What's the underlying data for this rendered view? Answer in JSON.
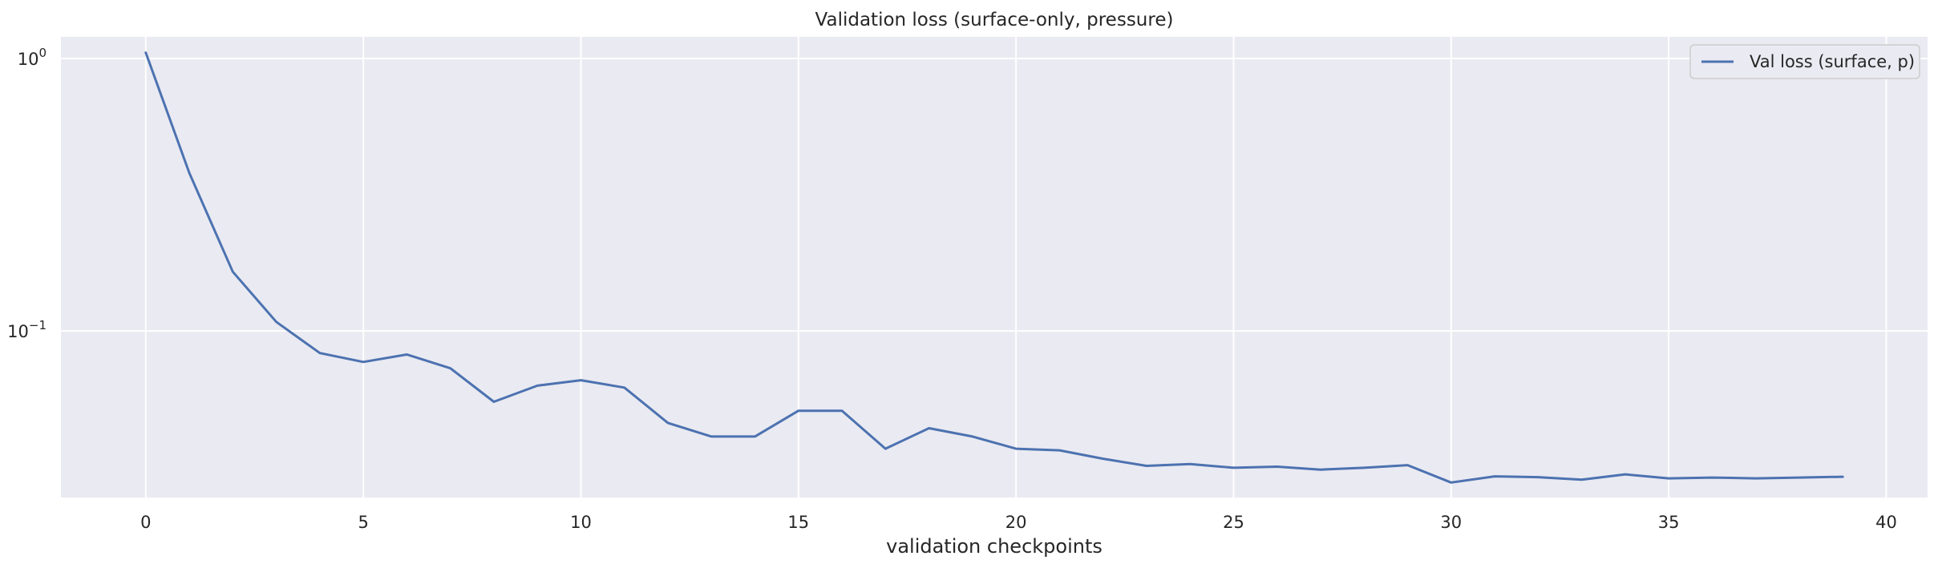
{
  "chart_data": {
    "type": "line",
    "title": "Validation loss (surface-only, pressure)",
    "xlabel": "validation checkpoints",
    "ylabel": "",
    "xlim": [
      -1.95,
      40.95
    ],
    "ylim": [
      0.0245,
      1.2
    ],
    "yscale": "log",
    "grid": true,
    "legend_position": "top-right",
    "x_ticks": [
      0,
      5,
      10,
      15,
      20,
      25,
      30,
      35,
      40
    ],
    "y_ticks": [
      {
        "value": 0.1,
        "base": "10",
        "exp": "−1"
      },
      {
        "value": 1,
        "base": "10",
        "exp": "0"
      }
    ],
    "colors": {
      "line": "#4c72b0",
      "plot_bg": "#eaeaf2",
      "grid": "#ffffff"
    },
    "series": [
      {
        "name": "Val loss (surface, p)",
        "x": [
          0,
          1,
          2,
          3,
          4,
          5,
          6,
          7,
          8,
          9,
          10,
          11,
          12,
          13,
          14,
          15,
          16,
          17,
          18,
          19,
          20,
          21,
          22,
          23,
          24,
          25,
          26,
          27,
          28,
          29,
          30,
          31,
          32,
          33,
          34,
          35,
          36,
          37,
          38,
          39
        ],
        "y": [
          1.05,
          0.38,
          0.165,
          0.108,
          0.083,
          0.077,
          0.082,
          0.073,
          0.055,
          0.063,
          0.066,
          0.062,
          0.046,
          0.041,
          0.041,
          0.051,
          0.051,
          0.037,
          0.044,
          0.041,
          0.037,
          0.0365,
          0.034,
          0.032,
          0.0325,
          0.0315,
          0.0318,
          0.031,
          0.0315,
          0.0322,
          0.0278,
          0.0293,
          0.0291,
          0.0285,
          0.0298,
          0.0288,
          0.029,
          0.0288,
          0.029,
          0.0292
        ]
      }
    ]
  }
}
